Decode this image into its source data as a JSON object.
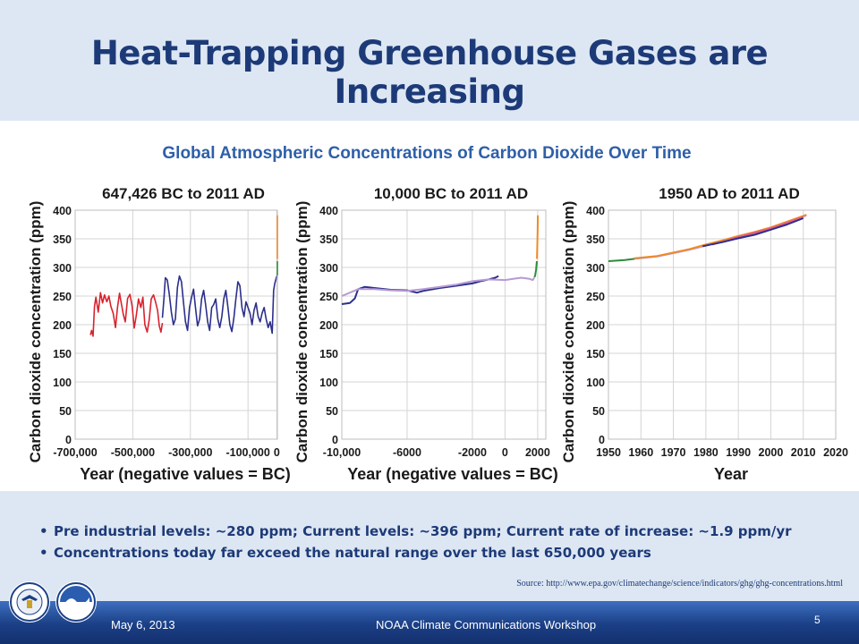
{
  "slide_title": "Heat-Trapping Greenhouse Gases are Increasing",
  "figure_title": "Global Atmospheric Concentrations of Carbon Dioxide Over Time",
  "bullets": [
    "Pre industrial levels: ~280 ppm; Current levels: ~396 ppm; Current rate of increase: ~1.9 ppm/yr",
    "Concentrations today far exceed the natural range over the last 650,000 years"
  ],
  "source": "Source: http://www.epa.gov/climatechange/science/indicators/ghg/ghg-concentrations.html",
  "footer": {
    "date": "May 6, 2013",
    "event": "NOAA Climate Communications Workshop",
    "page": "5"
  },
  "logos": {
    "left": "department-of-commerce-seal",
    "right": "noaa-logo",
    "left_text": "DEPARTMENT OF COMMERCE",
    "right_text": "NOAA"
  },
  "colors": {
    "title": "#1d3a78",
    "red_series": "#d9232e",
    "navy_series": "#2c2f8c",
    "purple_series": "#b79ad4",
    "green_series": "#2e8b3a",
    "orange_series": "#f08a24"
  },
  "chart_data": [
    {
      "type": "line",
      "title": "647,426 BC to 2011 AD",
      "xlabel": "Year (negative values = BC)",
      "ylabel": "Carbon dioxide concentration (ppm)",
      "xlim": [
        -700000,
        2011
      ],
      "ylim": [
        0,
        400
      ],
      "xticks": [
        -700000,
        -500000,
        -300000,
        -100000,
        0
      ],
      "xtick_labels": [
        "-700,000",
        "-500,000",
        "-300,000",
        "-100,000",
        "0"
      ],
      "yticks": [
        0,
        50,
        100,
        150,
        200,
        250,
        300,
        350,
        400
      ],
      "grid": true,
      "series": [
        {
          "color": "#d9232e",
          "x": [
            -647000,
            -643000,
            -638000,
            -633000,
            -628000,
            -620000,
            -612000,
            -605000,
            -598000,
            -590000,
            -583000,
            -576000,
            -568000,
            -560000,
            -553000,
            -546000,
            -540000,
            -533000,
            -526000,
            -518000,
            -510000,
            -502000,
            -495000,
            -488000,
            -480000,
            -472000,
            -465000,
            -458000,
            -450000,
            -443000,
            -436000,
            -428000,
            -421000,
            -414000,
            -408000,
            -402000,
            -397000
          ],
          "y": [
            182,
            190,
            180,
            232,
            248,
            222,
            256,
            238,
            252,
            240,
            250,
            232,
            220,
            195,
            230,
            255,
            238,
            218,
            205,
            246,
            253,
            232,
            194,
            215,
            245,
            230,
            248,
            200,
            187,
            208,
            245,
            252,
            240,
            225,
            198,
            187,
            203
          ]
        },
        {
          "color": "#2c2f8c",
          "x": [
            -397000,
            -392000,
            -387000,
            -380000,
            -373000,
            -366000,
            -359000,
            -352000,
            -345000,
            -338000,
            -331000,
            -324000,
            -317000,
            -310000,
            -303000,
            -296000,
            -289000,
            -282000,
            -275000,
            -268000,
            -261000,
            -254000,
            -247000,
            -240000,
            -233000,
            -226000,
            -219000,
            -212000,
            -205000,
            -198000,
            -191000,
            -184000,
            -177000,
            -170000,
            -163000,
            -156000,
            -149000,
            -142000,
            -135000,
            -128000,
            -121000,
            -114000,
            -107000,
            -100000,
            -93000,
            -86000,
            -79000,
            -72000,
            -65000,
            -58000,
            -51000,
            -44000,
            -37000,
            -30000,
            -23000,
            -16000,
            -11000,
            -7000,
            -3000,
            0
          ],
          "y": [
            212,
            245,
            282,
            278,
            252,
            222,
            200,
            210,
            265,
            285,
            275,
            240,
            205,
            190,
            230,
            248,
            262,
            228,
            198,
            210,
            245,
            260,
            235,
            205,
            190,
            230,
            235,
            245,
            210,
            195,
            214,
            245,
            260,
            232,
            200,
            188,
            212,
            245,
            275,
            268,
            230,
            214,
            240,
            230,
            220,
            200,
            225,
            238,
            215,
            205,
            220,
            230,
            210,
            195,
            205,
            185,
            260,
            272,
            280,
            285
          ]
        },
        {
          "color": "#b79ad4",
          "x": [
            0,
            500,
            1000,
            1500,
            1800
          ],
          "y": [
            278,
            280,
            282,
            281,
            284
          ]
        },
        {
          "color": "#2e8b3a",
          "x": [
            1850,
            1900,
            1950
          ],
          "y": [
            286,
            296,
            311
          ]
        },
        {
          "color": "#f08a24",
          "x": [
            1958,
            1980,
            2000,
            2011
          ],
          "y": [
            315,
            339,
            369,
            391
          ]
        }
      ]
    },
    {
      "type": "line",
      "title": "10,000 BC to 2011 AD",
      "xlabel": "Year (negative values = BC)",
      "ylabel": "Carbon dioxide concentration (ppm)",
      "xlim": [
        -10000,
        2500
      ],
      "ylim": [
        0,
        400
      ],
      "xticks": [
        -10000,
        -6000,
        -2000,
        0,
        2000
      ],
      "xtick_labels": [
        "-10,000",
        "-6000",
        "-2000",
        "0",
        "2000"
      ],
      "yticks": [
        0,
        50,
        100,
        150,
        200,
        250,
        300,
        350,
        400
      ],
      "grid": true,
      "series": [
        {
          "color": "#2c2f8c",
          "x": [
            -10000,
            -9500,
            -9200,
            -9000,
            -8600,
            -8000,
            -7000,
            -6000,
            -5400,
            -5000,
            -4000,
            -3000,
            -2000,
            -1500,
            -1000,
            -600,
            -400
          ],
          "y": [
            236,
            238,
            246,
            262,
            266,
            264,
            261,
            260,
            256,
            259,
            264,
            268,
            272,
            276,
            279,
            282,
            285
          ]
        },
        {
          "color": "#b79ad4",
          "x": [
            -10000,
            -9000,
            -8000,
            -7000,
            -6000,
            -5000,
            -4000,
            -3000,
            -2000,
            -1000,
            0,
            500,
            1000,
            1500,
            1700,
            1800
          ],
          "y": [
            250,
            262,
            262,
            260,
            259,
            262,
            266,
            270,
            276,
            279,
            278,
            280,
            282,
            280,
            278,
            282
          ]
        },
        {
          "color": "#2e8b3a",
          "x": [
            1800,
            1850,
            1900,
            1950
          ],
          "y": [
            283,
            286,
            296,
            311
          ]
        },
        {
          "color": "#f08a24",
          "x": [
            1958,
            1980,
            2000,
            2011
          ],
          "y": [
            315,
            339,
            369,
            391
          ]
        }
      ]
    },
    {
      "type": "line",
      "title": "1950 AD to 2011 AD",
      "xlabel": "Year",
      "ylabel": "Carbon dioxide concentration (ppm)",
      "xlim": [
        1950,
        2020
      ],
      "ylim": [
        0,
        400
      ],
      "xticks": [
        1950,
        1960,
        1970,
        1980,
        1990,
        2000,
        2010,
        2020
      ],
      "xtick_labels": [
        "1950",
        "1960",
        "1970",
        "1980",
        "1990",
        "2000",
        "2010",
        "2020"
      ],
      "yticks": [
        0,
        50,
        100,
        150,
        200,
        250,
        300,
        350,
        400
      ],
      "grid": true,
      "series": [
        {
          "color": "#2e8b3a",
          "x": [
            1950,
            1955,
            1958
          ],
          "y": [
            311,
            313,
            315
          ]
        },
        {
          "color": "#b79ad4",
          "x": [
            1958,
            1965,
            1970,
            1975,
            1980,
            1985,
            1990,
            1995,
            2000,
            2005,
            2010,
            2011
          ],
          "y": [
            315,
            319,
            325,
            331,
            338,
            346,
            354,
            360,
            369,
            379,
            389,
            391
          ]
        },
        {
          "color": "#f08a24",
          "x": [
            1958,
            1965,
            1970,
            1975,
            1980,
            1985,
            1990,
            1995,
            2000,
            2005,
            2010,
            2011
          ],
          "y": [
            316,
            320,
            326,
            332,
            340,
            347,
            355,
            362,
            370,
            380,
            390,
            392
          ]
        },
        {
          "color": "#e05a8a",
          "x": [
            1982,
            1990,
            2000,
            2010
          ],
          "y": [
            340,
            353,
            368,
            388
          ]
        },
        {
          "color": "#2c2f8c",
          "x": [
            1979,
            1985,
            1990,
            1995,
            2000,
            2005,
            2010
          ],
          "y": [
            337,
            344,
            351,
            357,
            366,
            375,
            386
          ]
        }
      ]
    }
  ]
}
